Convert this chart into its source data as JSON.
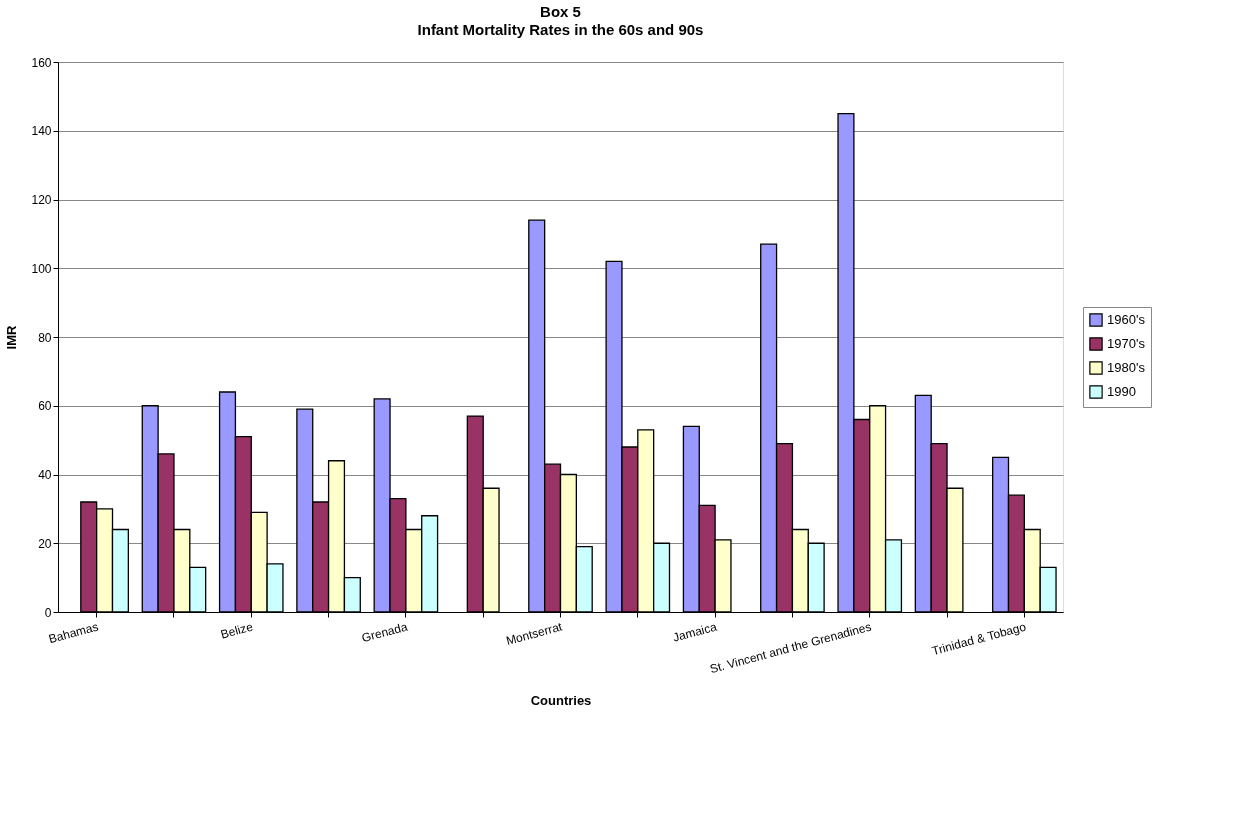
{
  "chart_data": {
    "type": "bar",
    "title": "Box 5",
    "subtitle": "Infant Mortality Rates in the 60s and 90s",
    "xlabel": "Countries",
    "ylabel": "IMR",
    "categories": [
      "Bahamas",
      null,
      "Belize",
      null,
      "Grenada",
      null,
      "Montserrat",
      null,
      "Jamaica",
      null,
      "St. Vincent and the Grenadines",
      null,
      "Trinidad & Tobago"
    ],
    "series": [
      {
        "name": "1960's",
        "color": "#9999ff",
        "values": [
          null,
          60,
          64,
          59,
          62,
          null,
          114,
          102,
          54,
          107,
          145,
          63,
          45
        ]
      },
      {
        "name": "1970's",
        "color": "#993366",
        "values": [
          32,
          46,
          51,
          32,
          33,
          57,
          43,
          48,
          31,
          49,
          56,
          49,
          34
        ]
      },
      {
        "name": "1980's",
        "color": "#ffffcc",
        "values": [
          30,
          24,
          29,
          44,
          24,
          36,
          40,
          53,
          21,
          24,
          60,
          36,
          24
        ]
      },
      {
        "name": "1990",
        "color": "#ccffff",
        "values": [
          24,
          13,
          14,
          10,
          28,
          null,
          19,
          20,
          null,
          20,
          21,
          null,
          13
        ]
      }
    ],
    "ylim": [
      0,
      160
    ],
    "yticks": [
      0,
      20,
      40,
      60,
      80,
      100,
      120,
      140,
      160
    ],
    "grid": "y",
    "legend": "right"
  }
}
